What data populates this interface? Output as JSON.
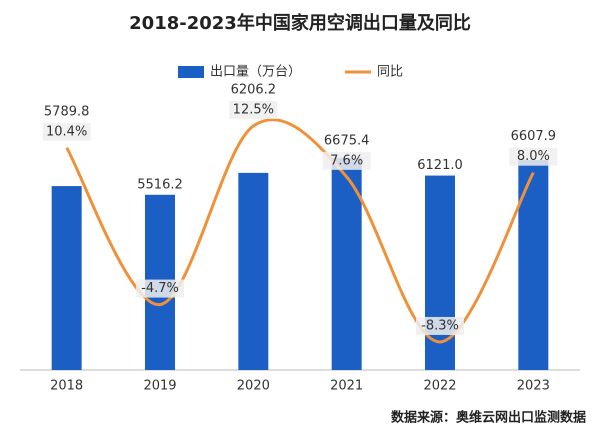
{
  "chart_data": {
    "type": "bar-line",
    "title": "2018-2023年中国家用空调出口量及同比",
    "categories": [
      "2018",
      "2019",
      "2020",
      "2021",
      "2022",
      "2023"
    ],
    "series": [
      {
        "name": "出口量（万台）",
        "type": "bar",
        "color": "#1c5fc4",
        "values": [
          5789.8,
          5516.2,
          6206.2,
          6675.4,
          6121.0,
          6607.9
        ],
        "value_labels": [
          "5789.8",
          "5516.2",
          "6206.2",
          "6675.4",
          "6121.0",
          "6607.9"
        ]
      },
      {
        "name": "同比",
        "type": "line",
        "axis": "y2",
        "color": "#f0913a",
        "values": [
          10.4,
          -4.7,
          12.5,
          7.6,
          -8.3,
          8.0
        ],
        "value_labels": [
          "10.4%",
          "-4.7%",
          "12.5%",
          "7.6%",
          "-8.3%",
          "8.0%"
        ]
      }
    ],
    "ylim": [
      0,
      8500
    ],
    "y2lim": [
      -11,
      15
    ],
    "legend": "top",
    "source": "数据来源：奥维云网出口监测数据"
  }
}
